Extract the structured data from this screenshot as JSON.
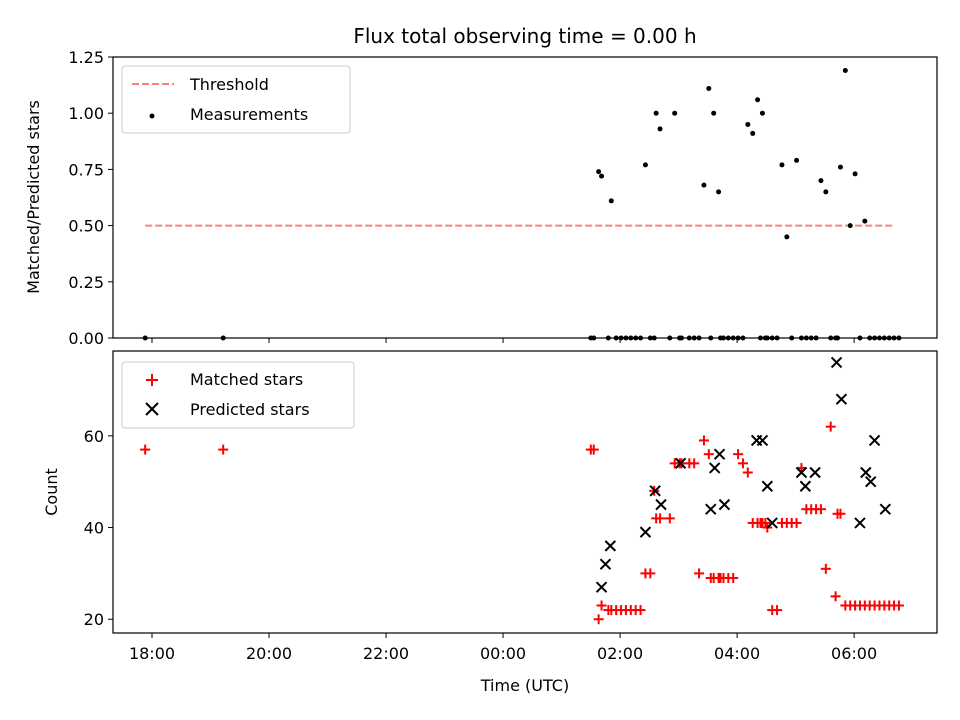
{
  "chart_data": [
    {
      "type": "scatter",
      "title": "Flux total observing time = 0.00 h",
      "xlabel": "",
      "ylabel": "Matched/Predicted stars",
      "xlim": [
        "2000-01-01T17:20",
        "2000-01-02T07:25"
      ],
      "ylim": [
        0,
        1.25
      ],
      "yticks": [
        0,
        0.25,
        0.5,
        0.75,
        1.0,
        1.25
      ],
      "ytick_labels": [
        "0.00",
        "0.25",
        "0.50",
        "0.75",
        "1.00",
        "1.25"
      ],
      "grid": false,
      "legend_position": "top-left",
      "series": [
        {
          "name": "Threshold",
          "kind": "line",
          "style": "dashed",
          "color": "#ff7f7f",
          "x": [
            "2000-01-01T17:53",
            "2000-01-02T06:42"
          ],
          "y": [
            0.5,
            0.5
          ]
        },
        {
          "name": "Measurements",
          "kind": "dot",
          "color": "#000000",
          "x": [
            "2000-01-01T17:53",
            "2000-01-01T19:13",
            "2000-01-02T01:30",
            "2000-01-02T01:33",
            "2000-01-02T01:38",
            "2000-01-02T01:41",
            "2000-01-02T01:48",
            "2000-01-02T01:51",
            "2000-01-02T01:56",
            "2000-01-02T02:01",
            "2000-01-02T02:06",
            "2000-01-02T02:11",
            "2000-01-02T02:16",
            "2000-01-02T02:21",
            "2000-01-02T02:26",
            "2000-01-02T02:31",
            "2000-01-02T02:35",
            "2000-01-02T02:37",
            "2000-01-02T02:41",
            "2000-01-02T02:51",
            "2000-01-02T02:56",
            "2000-01-02T03:01",
            "2000-01-02T03:03",
            "2000-01-02T03:11",
            "2000-01-02T03:16",
            "2000-01-02T03:21",
            "2000-01-02T03:26",
            "2000-01-02T03:31",
            "2000-01-02T03:33",
            "2000-01-02T03:36",
            "2000-01-02T03:41",
            "2000-01-02T03:43",
            "2000-01-02T03:46",
            "2000-01-02T03:51",
            "2000-01-02T03:56",
            "2000-01-02T04:01",
            "2000-01-02T04:06",
            "2000-01-02T04:11",
            "2000-01-02T04:16",
            "2000-01-02T04:21",
            "2000-01-02T04:24",
            "2000-01-02T04:26",
            "2000-01-02T04:29",
            "2000-01-02T04:31",
            "2000-01-02T04:36",
            "2000-01-02T04:41",
            "2000-01-02T04:46",
            "2000-01-02T04:51",
            "2000-01-02T04:56",
            "2000-01-02T05:01",
            "2000-01-02T05:06",
            "2000-01-02T05:11",
            "2000-01-02T05:16",
            "2000-01-02T05:21",
            "2000-01-02T05:26",
            "2000-01-02T05:31",
            "2000-01-02T05:36",
            "2000-01-02T05:41",
            "2000-01-02T05:43",
            "2000-01-02T05:46",
            "2000-01-02T05:51",
            "2000-01-02T05:56",
            "2000-01-02T06:01",
            "2000-01-02T06:06",
            "2000-01-02T06:11",
            "2000-01-02T06:16",
            "2000-01-02T06:21",
            "2000-01-02T06:26",
            "2000-01-02T06:31",
            "2000-01-02T06:36",
            "2000-01-02T06:41",
            "2000-01-02T06:46"
          ],
          "y": [
            0,
            0,
            0,
            0,
            0.74,
            0.72,
            0,
            0.61,
            0,
            0,
            0,
            0,
            0,
            0,
            0.77,
            0,
            0,
            1.0,
            0.93,
            0,
            1.0,
            0,
            0,
            0,
            0,
            0,
            0.68,
            1.11,
            0,
            1.0,
            0.65,
            0,
            0,
            0,
            0,
            0,
            0,
            0.95,
            0.91,
            1.06,
            0,
            1.0,
            0,
            0,
            0,
            0,
            0.77,
            0.45,
            0,
            0.79,
            0,
            0,
            0,
            0,
            0.7,
            0.65,
            0,
            0,
            0,
            0.76,
            1.19,
            0.5,
            0.73,
            0,
            0.52,
            0,
            0,
            0,
            0,
            0,
            0,
            0
          ]
        }
      ]
    },
    {
      "type": "scatter",
      "title": "",
      "xlabel": "Time (UTC)",
      "ylabel": "Count",
      "xlim": [
        "2000-01-01T17:20",
        "2000-01-02T07:25"
      ],
      "ylim": [
        17,
        78.5
      ],
      "yticks": [
        20,
        40,
        60
      ],
      "ytick_labels": [
        "20",
        "40",
        "60"
      ],
      "xticks": [
        "2000-01-01T18:00",
        "2000-01-01T20:00",
        "2000-01-01T22:00",
        "2000-01-02T00:00",
        "2000-01-02T02:00",
        "2000-01-02T04:00",
        "2000-01-02T06:00"
      ],
      "xtick_labels": [
        "18:00",
        "20:00",
        "22:00",
        "00:00",
        "02:00",
        "04:00",
        "06:00"
      ],
      "grid": false,
      "legend_position": "top-left",
      "series": [
        {
          "name": "Matched stars",
          "marker": "plus",
          "color": "#ff0000",
          "x": [
            "2000-01-01T17:53",
            "2000-01-01T19:13",
            "2000-01-02T01:30",
            "2000-01-02T01:33",
            "2000-01-02T01:38",
            "2000-01-02T01:41",
            "2000-01-02T01:48",
            "2000-01-02T01:51",
            "2000-01-02T01:56",
            "2000-01-02T02:01",
            "2000-01-02T02:06",
            "2000-01-02T02:11",
            "2000-01-02T02:16",
            "2000-01-02T02:21",
            "2000-01-02T02:26",
            "2000-01-02T02:31",
            "2000-01-02T02:35",
            "2000-01-02T02:37",
            "2000-01-02T02:41",
            "2000-01-02T02:51",
            "2000-01-02T02:56",
            "2000-01-02T03:01",
            "2000-01-02T03:03",
            "2000-01-02T03:11",
            "2000-01-02T03:16",
            "2000-01-02T03:21",
            "2000-01-02T03:26",
            "2000-01-02T03:31",
            "2000-01-02T03:33",
            "2000-01-02T03:36",
            "2000-01-02T03:41",
            "2000-01-02T03:43",
            "2000-01-02T03:46",
            "2000-01-02T03:51",
            "2000-01-02T03:56",
            "2000-01-02T04:01",
            "2000-01-02T04:06",
            "2000-01-02T04:11",
            "2000-01-02T04:16",
            "2000-01-02T04:21",
            "2000-01-02T04:24",
            "2000-01-02T04:26",
            "2000-01-02T04:29",
            "2000-01-02T04:31",
            "2000-01-02T04:36",
            "2000-01-02T04:41",
            "2000-01-02T04:46",
            "2000-01-02T04:51",
            "2000-01-02T04:56",
            "2000-01-02T05:01",
            "2000-01-02T05:06",
            "2000-01-02T05:11",
            "2000-01-02T05:16",
            "2000-01-02T05:21",
            "2000-01-02T05:26",
            "2000-01-02T05:31",
            "2000-01-02T05:36",
            "2000-01-02T05:41",
            "2000-01-02T05:43",
            "2000-01-02T05:46",
            "2000-01-02T05:51",
            "2000-01-02T05:56",
            "2000-01-02T06:01",
            "2000-01-02T06:06",
            "2000-01-02T06:11",
            "2000-01-02T06:16",
            "2000-01-02T06:21",
            "2000-01-02T06:26",
            "2000-01-02T06:31",
            "2000-01-02T06:36",
            "2000-01-02T06:41",
            "2000-01-02T06:46"
          ],
          "y": [
            57,
            57,
            57,
            57,
            20,
            23,
            22,
            22,
            22,
            22,
            22,
            22,
            22,
            22,
            30,
            30,
            48,
            42,
            42,
            42,
            54,
            54,
            54,
            54,
            54,
            30,
            59,
            56,
            29,
            29,
            29,
            29,
            29,
            29,
            29,
            56,
            54,
            52,
            41,
            41,
            41,
            41,
            41,
            40,
            22,
            22,
            41,
            41,
            41,
            41,
            53,
            44,
            44,
            44,
            44,
            31,
            62,
            25,
            43,
            43,
            23,
            23,
            23,
            23,
            23,
            23,
            23,
            23,
            23,
            23,
            23,
            23
          ]
        },
        {
          "name": "Predicted stars",
          "marker": "x",
          "color": "#000000",
          "x": [
            "2000-01-02T01:41",
            "2000-01-02T01:45",
            "2000-01-02T01:50",
            "2000-01-02T02:26",
            "2000-01-02T02:36",
            "2000-01-02T02:42",
            "2000-01-02T03:02",
            "2000-01-02T03:33",
            "2000-01-02T03:37",
            "2000-01-02T03:42",
            "2000-01-02T03:47",
            "2000-01-02T04:20",
            "2000-01-02T04:26",
            "2000-01-02T04:31",
            "2000-01-02T04:36",
            "2000-01-02T05:06",
            "2000-01-02T05:10",
            "2000-01-02T05:20",
            "2000-01-02T05:42",
            "2000-01-02T05:47",
            "2000-01-02T06:06",
            "2000-01-02T06:12",
            "2000-01-02T06:17",
            "2000-01-02T06:21",
            "2000-01-02T06:32"
          ],
          "y": [
            27,
            32,
            36,
            39,
            48,
            45,
            54,
            44,
            53,
            56,
            45,
            59,
            59,
            49,
            41,
            52,
            49,
            52,
            76,
            68,
            41,
            52,
            50,
            59,
            44
          ]
        }
      ]
    }
  ]
}
